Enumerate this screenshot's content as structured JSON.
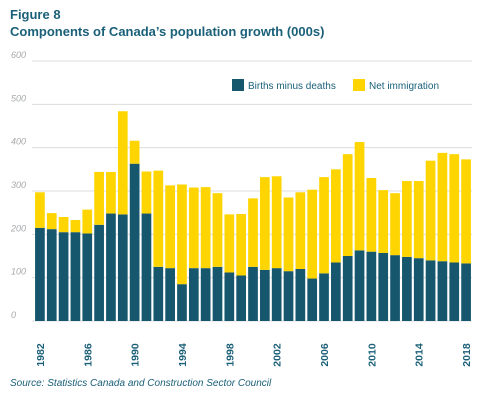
{
  "figure_label": "Figure 8",
  "title": "Components of Canada’s population growth (000s)",
  "source": "Source: Statistics Canada and Construction Sector Council",
  "colors": {
    "births": "#17576e",
    "immigration": "#fed500",
    "grid": "#dcdcdc",
    "text": "#1b6079",
    "ytick": "#a7a9ac"
  },
  "chart_data": {
    "type": "bar",
    "stacked": true,
    "title": "Components of Canada’s population growth (000s)",
    "ylim": [
      0,
      600
    ],
    "yticks": [
      0,
      100,
      200,
      300,
      400,
      500,
      600
    ],
    "grid": true,
    "legend_position": "top-right",
    "x_tick_labels": [
      "1982",
      "1986",
      "1990",
      "1994",
      "1998",
      "2002",
      "2006",
      "2010",
      "2014",
      "2018"
    ],
    "categories": [
      "1982",
      "1983",
      "1984",
      "1985",
      "1986",
      "1987",
      "1988",
      "1989",
      "1990",
      "1991",
      "1992",
      "1993",
      "1994",
      "1995",
      "1996",
      "1997",
      "1998",
      "1999",
      "2000",
      "2001",
      "2002",
      "2003",
      "2004",
      "2005",
      "2006",
      "2007",
      "2008",
      "2009",
      "2010",
      "2011",
      "2012",
      "2013",
      "2014",
      "2015",
      "2016",
      "2017",
      "2018"
    ],
    "series": [
      {
        "name": "Births minus deaths",
        "values": [
          215,
          212,
          205,
          205,
          202,
          222,
          248,
          246,
          363,
          248,
          125,
          122,
          85,
          122,
          122,
          125,
          112,
          105,
          125,
          118,
          122,
          115,
          120,
          98,
          110,
          135,
          150,
          163,
          160,
          157,
          152,
          148,
          145,
          140,
          138,
          135,
          133
        ]
      },
      {
        "name": "Net immigration",
        "values": [
          82,
          37,
          35,
          28,
          55,
          122,
          96,
          238,
          53,
          97,
          222,
          191,
          230,
          186,
          187,
          170,
          134,
          142,
          158,
          214,
          212,
          170,
          177,
          205,
          222,
          215,
          235,
          250,
          170,
          145,
          143,
          175,
          178,
          230,
          250,
          250,
          240
        ]
      }
    ]
  }
}
